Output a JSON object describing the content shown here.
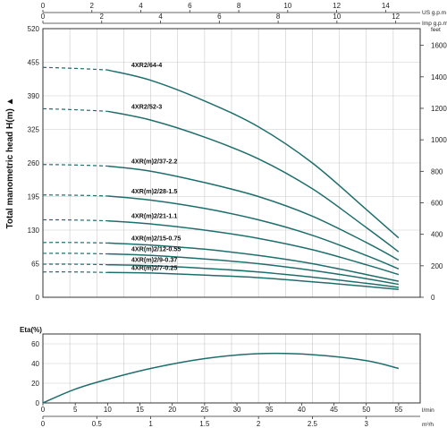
{
  "chart_data": [
    {
      "type": "line",
      "title": "",
      "ylabel": "Total manometric head H(m)",
      "ylim": [
        0,
        520
      ],
      "y_ticks": [
        "0",
        "65",
        "130",
        "195",
        "260",
        "325",
        "390",
        "455",
        "520"
      ],
      "y2_unit": "feet",
      "y2lim": [
        0,
        1706
      ],
      "y2_ticks": [
        "0",
        "200",
        "400",
        "600",
        "800",
        "1000",
        "1200",
        "1400",
        "1600"
      ],
      "x_top1_unit": "US g.p.m",
      "x_top1_ticks": [
        "0",
        "2",
        "4",
        "6",
        "8",
        "10",
        "12",
        "14"
      ],
      "x_top2_unit": "Imp g.p.m",
      "x_top2_ticks": [
        "0",
        "2",
        "4",
        "6",
        "8",
        "10",
        "12"
      ],
      "x_unit": "m³/h",
      "xlim": [
        0,
        3.5
      ],
      "grid": true,
      "series": [
        {
          "name": "4XR2/64-4",
          "shutoff": 445,
          "x": [
            0.6,
            1.0,
            1.5,
            2.0,
            2.5,
            3.0,
            3.3
          ],
          "y": [
            440,
            420,
            380,
            330,
            260,
            170,
            115
          ]
        },
        {
          "name": "4XR2/52-3",
          "shutoff": 365,
          "x": [
            0.6,
            1.0,
            1.5,
            2.0,
            2.5,
            3.0,
            3.3
          ],
          "y": [
            360,
            343,
            310,
            268,
            210,
            135,
            88
          ]
        },
        {
          "name": "4XR(m)2/37-2.2",
          "shutoff": 257,
          "x": [
            0.6,
            1.0,
            1.5,
            2.0,
            2.5,
            3.0,
            3.3
          ],
          "y": [
            254,
            244,
            222,
            195,
            157,
            106,
            72
          ]
        },
        {
          "name": "4XR(m)2/28-1.5",
          "shutoff": 198,
          "x": [
            0.6,
            1.0,
            1.5,
            2.0,
            2.5,
            3.0,
            3.3
          ],
          "y": [
            196,
            188,
            172,
            150,
            120,
            81,
            55
          ]
        },
        {
          "name": "4XR(m)2/21-1.1",
          "shutoff": 150,
          "x": [
            0.6,
            1.0,
            1.5,
            2.0,
            2.5,
            3.0,
            3.3
          ],
          "y": [
            148,
            142,
            130,
            114,
            92,
            63,
            44
          ]
        },
        {
          "name": "4XR(m)2/15-0.75",
          "shutoff": 106,
          "x": [
            0.6,
            1.0,
            1.5,
            2.0,
            2.5,
            3.0,
            3.3
          ],
          "y": [
            105,
            101,
            93,
            81,
            65,
            44,
            31
          ]
        },
        {
          "name": "4XR(m)2/12-0.55",
          "shutoff": 85,
          "x": [
            0.6,
            1.0,
            1.5,
            2.0,
            2.5,
            3.0,
            3.3
          ],
          "y": [
            84,
            81,
            74,
            65,
            52,
            36,
            25
          ]
        },
        {
          "name": "4XR(m)2/9-0.37",
          "shutoff": 64,
          "x": [
            0.6,
            1.0,
            1.5,
            2.0,
            2.5,
            3.0,
            3.3
          ],
          "y": [
            63,
            61,
            56,
            49,
            39,
            27,
            19
          ]
        },
        {
          "name": "4XR(m)2/7-0.25",
          "shutoff": 49,
          "x": [
            0.6,
            1.0,
            1.5,
            2.0,
            2.5,
            3.0,
            3.3
          ],
          "y": [
            48,
            47,
            43,
            38,
            30,
            21,
            15
          ]
        }
      ]
    },
    {
      "type": "line",
      "title": "",
      "ylabel": "Eta(%)",
      "ylim": [
        0,
        70
      ],
      "y_ticks": [
        "0",
        "20",
        "40",
        "60"
      ],
      "x_bottom1_unit": "l/min",
      "x_bottom1_ticks": [
        "0",
        "5",
        "10",
        "15",
        "20",
        "25",
        "30",
        "35",
        "40",
        "45",
        "50",
        "55"
      ],
      "x_bottom2_unit": "m³/h",
      "x_bottom2_ticks": [
        "0",
        "0.5",
        "1",
        "1.5",
        "2",
        "2.5",
        "3"
      ],
      "xlim": [
        0,
        3.5
      ],
      "grid": true,
      "series": [
        {
          "x": [
            0,
            0.3,
            0.6,
            1.0,
            1.5,
            2.0,
            2.5,
            3.0,
            3.3
          ],
          "y": [
            0,
            14,
            24,
            35,
            45,
            50,
            49,
            43,
            35
          ]
        }
      ]
    }
  ]
}
